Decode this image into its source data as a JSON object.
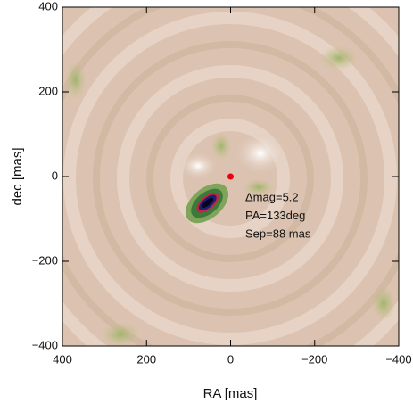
{
  "chart_data": {
    "type": "map",
    "xlabel": "RA [mas]",
    "ylabel": "dec [mas]",
    "xlim": [
      400,
      -400
    ],
    "ylim": [
      -400,
      400
    ],
    "xticks": [
      400,
      200,
      0,
      {
        "value": -200,
        "label": "−200"
      },
      {
        "value": -400,
        "label": "−400"
      }
    ],
    "yticks": [
      {
        "value": -400,
        "label": "−400"
      },
      {
        "value": -200,
        "label": "−200"
      },
      0,
      200,
      400
    ],
    "marker": {
      "x": 0,
      "y": 0,
      "color": "#e8000b"
    },
    "annotations": [
      "Δmag=5.2",
      "PA=133deg",
      "Sep=88 mas"
    ]
  }
}
